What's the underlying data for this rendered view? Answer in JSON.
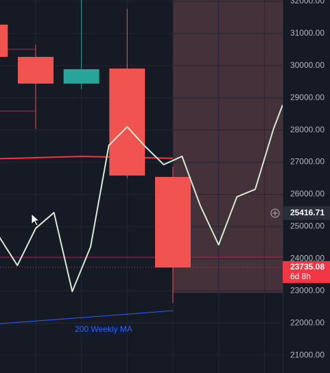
{
  "chart_data": {
    "type": "candlestick",
    "xlim": [
      -0.78,
      5.4
    ],
    "ylim": [
      20450,
      32040
    ],
    "yticks": [
      {
        "value": 21000,
        "label": "21000.00"
      },
      {
        "value": 22000,
        "label": "22000.00"
      },
      {
        "value": 23000,
        "label": "23000.00"
      },
      {
        "value": 24000,
        "label": "24000.00"
      },
      {
        "value": 25000,
        "label": "25000.00"
      },
      {
        "value": 26000,
        "label": "26000.00"
      },
      {
        "value": 27000,
        "label": "27000.00"
      },
      {
        "value": 28000,
        "label": "28000.00"
      },
      {
        "value": 29000,
        "label": "29000.00"
      },
      {
        "value": 30000,
        "label": "30000.00"
      },
      {
        "value": 31000,
        "label": "31000.00"
      },
      {
        "value": 32000,
        "label": "32000.00"
      }
    ],
    "xgrid": [
      0,
      1,
      2,
      3,
      4,
      5
    ],
    "grid": true,
    "up_color": "#26a69a",
    "down_color": "#f05350",
    "candles": {
      "x": [
        -1,
        0,
        1,
        2,
        3
      ],
      "open": [
        31275,
        30273,
        29442,
        29910,
        26543
      ],
      "high": [
        31275,
        30657,
        32040,
        31766,
        26862
      ],
      "low": [
        30273,
        28035,
        29270,
        26500,
        22620
      ],
      "close": [
        30273,
        29442,
        29890,
        26585,
        23729
      ]
    },
    "series": [
      {
        "color": "#d4ecd0",
        "width": 2,
        "x": [
          -0.8,
          -0.4,
          0,
          0.4,
          0.8,
          1.2,
          1.6,
          2,
          2.4,
          2.8,
          3.2,
          3.6,
          4,
          4.4,
          4.8,
          5.2,
          5.4
        ],
        "values": [
          24688,
          23793,
          24944,
          25434,
          22983,
          24368,
          27523,
          28099,
          27481,
          26926,
          27182,
          25647,
          24432,
          25925,
          26159,
          28035,
          28781
        ]
      },
      {
        "color": "#f23645",
        "width": 2,
        "x": [
          -0.78,
          1,
          3
        ],
        "values": [
          27110,
          27180,
          27120
        ]
      },
      {
        "name": "200 Weekly MA",
        "color": "#2962ff",
        "width": 1,
        "x": [
          -0.78,
          3
        ],
        "values": [
          21980,
          22386
        ]
      }
    ],
    "hlines": [
      {
        "value": 30508,
        "x": [
          -0.78,
          0
        ],
        "color": "#c2185b"
      },
      {
        "value": 28589,
        "x": [
          -0.78,
          0
        ],
        "color": "#c2185b"
      },
      {
        "value": 24049,
        "x": [
          -0.78,
          5.4
        ],
        "color": "#c2185b"
      }
    ],
    "zone": {
      "x": [
        3,
        5.4
      ],
      "y": [
        22940,
        32040
      ],
      "color": "rgba(190,110,110,0.28)"
    },
    "price_labels": [
      {
        "value": 25416.71,
        "label": "25416.71",
        "color": "#2a2e39"
      },
      {
        "value": 23735.08,
        "label": "23735.08",
        "countdown": "6d 8h",
        "color": "#f23645"
      }
    ]
  }
}
